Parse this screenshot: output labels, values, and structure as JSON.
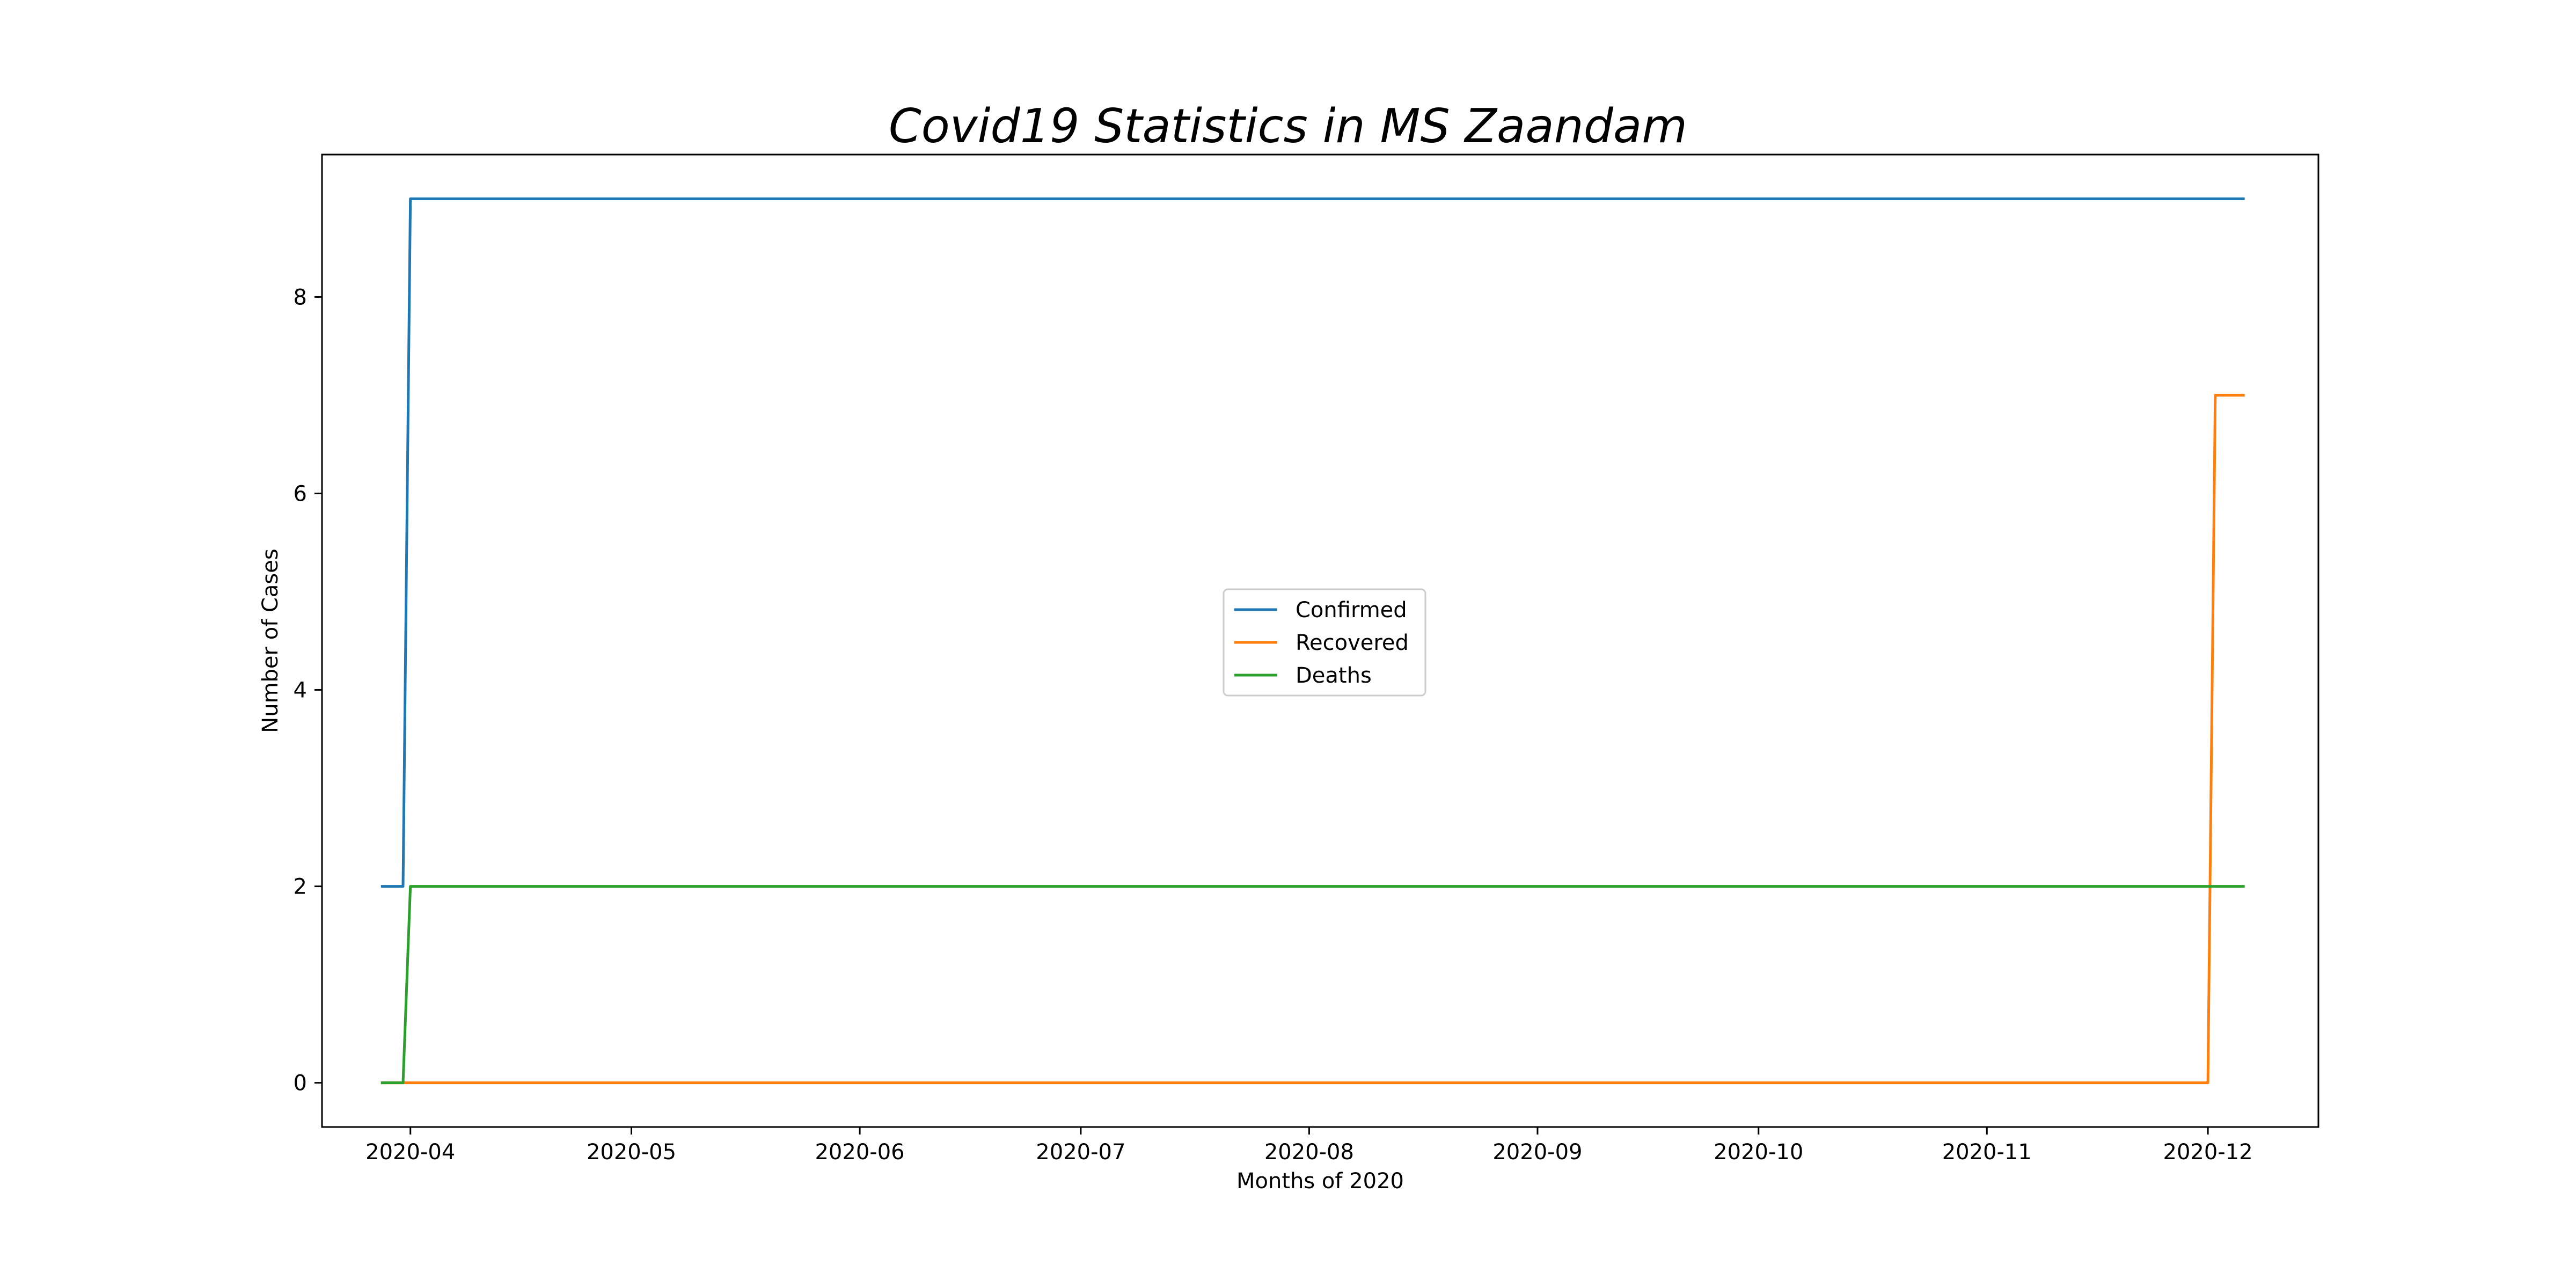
{
  "chart_data": {
    "type": "line",
    "title": "Covid19 Statistics in MS Zaandam",
    "xlabel": "Months of 2020",
    "ylabel": "Number of Cases",
    "x_axis_type": "date",
    "xlim": [
      "2020-03-20",
      "2020-12-16"
    ],
    "ylim": [
      -0.45,
      9.45
    ],
    "x_ticks": [
      "2020-04",
      "2020-05",
      "2020-06",
      "2020-07",
      "2020-08",
      "2020-09",
      "2020-10",
      "2020-11",
      "2020-12"
    ],
    "y_ticks": [
      "0",
      "2",
      "4",
      "6",
      "8"
    ],
    "grid": false,
    "legend_position": "center",
    "series": [
      {
        "name": "Confirmed",
        "color": "#1f77b4",
        "points": [
          {
            "x": "2020-03-28",
            "y": 2
          },
          {
            "x": "2020-03-31",
            "y": 2
          },
          {
            "x": "2020-04-01",
            "y": 9
          },
          {
            "x": "2020-12-06",
            "y": 9
          }
        ]
      },
      {
        "name": "Recovered",
        "color": "#ff7f0e",
        "points": [
          {
            "x": "2020-03-28",
            "y": 0
          },
          {
            "x": "2020-12-01",
            "y": 0
          },
          {
            "x": "2020-12-02",
            "y": 7
          },
          {
            "x": "2020-12-06",
            "y": 7
          }
        ]
      },
      {
        "name": "Deaths",
        "color": "#2ca02c",
        "points": [
          {
            "x": "2020-03-28",
            "y": 0
          },
          {
            "x": "2020-03-31",
            "y": 0
          },
          {
            "x": "2020-04-01",
            "y": 2
          },
          {
            "x": "2020-12-06",
            "y": 2
          }
        ]
      }
    ]
  }
}
